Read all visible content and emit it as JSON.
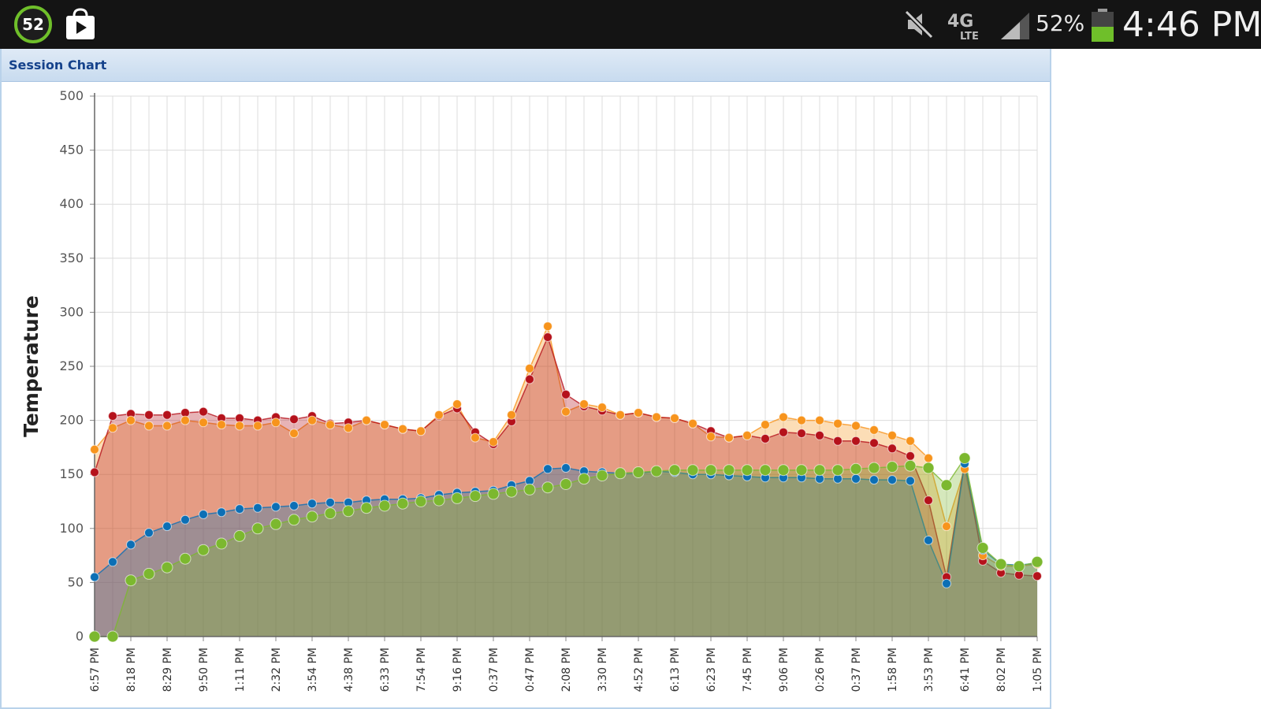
{
  "status_bar": {
    "notification_count": "52",
    "battery_percent": "52%",
    "time": "4:46 PM",
    "network": "4G LTE",
    "icons": [
      "notification-badge",
      "play-store-icon",
      "mute-icon",
      "lte-icon",
      "signal-icon",
      "battery-icon"
    ],
    "colors": {
      "background": "#141414",
      "badge_ring": "#6fbf2a",
      "battery_fill": "#6fbf2a"
    }
  },
  "panel": {
    "title": "Session Chart"
  },
  "chart_data": {
    "type": "area",
    "title": "",
    "ylabel": "Temperature",
    "xlabel": "",
    "ylim": [
      0,
      500
    ],
    "yticks": [
      0,
      50,
      100,
      150,
      200,
      250,
      300,
      350,
      400,
      450,
      500
    ],
    "grid": true,
    "x_tick_labels": [
      "6:57 PM",
      "8:18 PM",
      "8:29 PM",
      "9:50 PM",
      "1:11 PM",
      "2:32 PM",
      "3:54 PM",
      "4:38 PM",
      "6:33 PM",
      "7:54 PM",
      "9:16 PM",
      "0:37 PM",
      "0:47 PM",
      "2:08 PM",
      "3:30 PM",
      "4:52 PM",
      "6:13 PM",
      "6:23 PM",
      "7:45 PM",
      "9:06 PM",
      "0:26 PM",
      "0:37 PM",
      "1:58 PM",
      "3:53 PM",
      "6:41 PM",
      "8:02 PM",
      "1:05 PM"
    ],
    "series": [
      {
        "color": "#f7941d",
        "values": [
          173,
          193,
          200,
          195,
          195,
          200,
          198,
          196,
          195,
          195,
          198,
          188,
          200,
          196,
          193,
          200,
          196,
          192,
          190,
          205,
          215,
          184,
          180,
          205,
          248,
          287,
          208,
          215,
          212,
          205,
          207,
          203,
          202,
          197,
          185,
          184,
          186,
          196,
          203,
          200,
          200,
          197,
          195,
          191,
          186,
          181,
          165,
          102,
          155,
          75,
          65,
          65,
          67
        ]
      },
      {
        "color": "#b5121b",
        "values": [
          152,
          204,
          206,
          205,
          205,
          207,
          208,
          202,
          202,
          200,
          203,
          201,
          204,
          197,
          198,
          200,
          196,
          192,
          190,
          204,
          211,
          189,
          178,
          199,
          238,
          277,
          224,
          213,
          209,
          205,
          207,
          203,
          202,
          197,
          190,
          184,
          186,
          183,
          189,
          188,
          186,
          181,
          181,
          179,
          174,
          167,
          126,
          55,
          162,
          70,
          59,
          57,
          56
        ]
      },
      {
        "color": "#0c6fb5",
        "values": [
          55,
          69,
          85,
          96,
          102,
          108,
          113,
          115,
          118,
          119,
          120,
          121,
          123,
          124,
          124,
          126,
          127,
          127,
          128,
          131,
          133,
          134,
          135,
          140,
          144,
          155,
          156,
          153,
          152,
          151,
          151,
          153,
          152,
          150,
          150,
          149,
          148,
          147,
          147,
          147,
          146,
          146,
          146,
          145,
          145,
          144,
          89,
          49,
          160,
          80,
          67,
          66,
          68
        ]
      },
      {
        "color": "#7cb82f",
        "values": [
          0,
          0,
          52,
          58,
          64,
          72,
          80,
          86,
          93,
          100,
          104,
          108,
          111,
          114,
          116,
          119,
          121,
          123,
          125,
          126,
          128,
          130,
          132,
          134,
          136,
          138,
          141,
          146,
          149,
          151,
          152,
          153,
          154,
          154,
          154,
          154,
          154,
          154,
          154,
          154,
          154,
          154,
          155,
          156,
          157,
          158,
          156,
          140,
          165,
          82,
          67,
          65,
          69
        ]
      }
    ]
  }
}
